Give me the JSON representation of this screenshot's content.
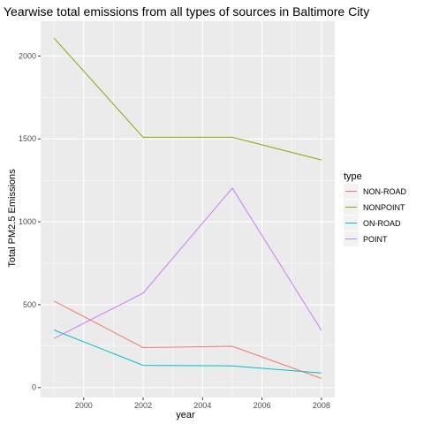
{
  "chart_data": {
    "type": "line",
    "title": "Yearwise total emissions from all types of sources in Baltimore City",
    "xlabel": "year",
    "ylabel": "Total PM2.5 Emissions",
    "xlim": [
      1998.55,
      2008.45
    ],
    "ylim": [
      -60,
      2210
    ],
    "x_ticks": [
      2000,
      2002,
      2004,
      2006,
      2008
    ],
    "y_ticks": [
      0,
      500,
      1000,
      1500,
      2000
    ],
    "grid": true,
    "legend": {
      "title": "type",
      "position": "right"
    },
    "x": [
      1999,
      2002,
      2005,
      2008
    ],
    "series": [
      {
        "name": "NON-ROAD",
        "color": "#F8766D",
        "values": [
          522,
          241,
          249,
          55
        ]
      },
      {
        "name": "NONPOINT",
        "color": "#7CAE00",
        "values": [
          2108,
          1510,
          1510,
          1373
        ]
      },
      {
        "name": "ON-ROAD",
        "color": "#00BFC4",
        "values": [
          347,
          134,
          131,
          88
        ]
      },
      {
        "name": "POINT",
        "color": "#C77CFF",
        "values": [
          296,
          570,
          1203,
          345
        ]
      }
    ]
  }
}
